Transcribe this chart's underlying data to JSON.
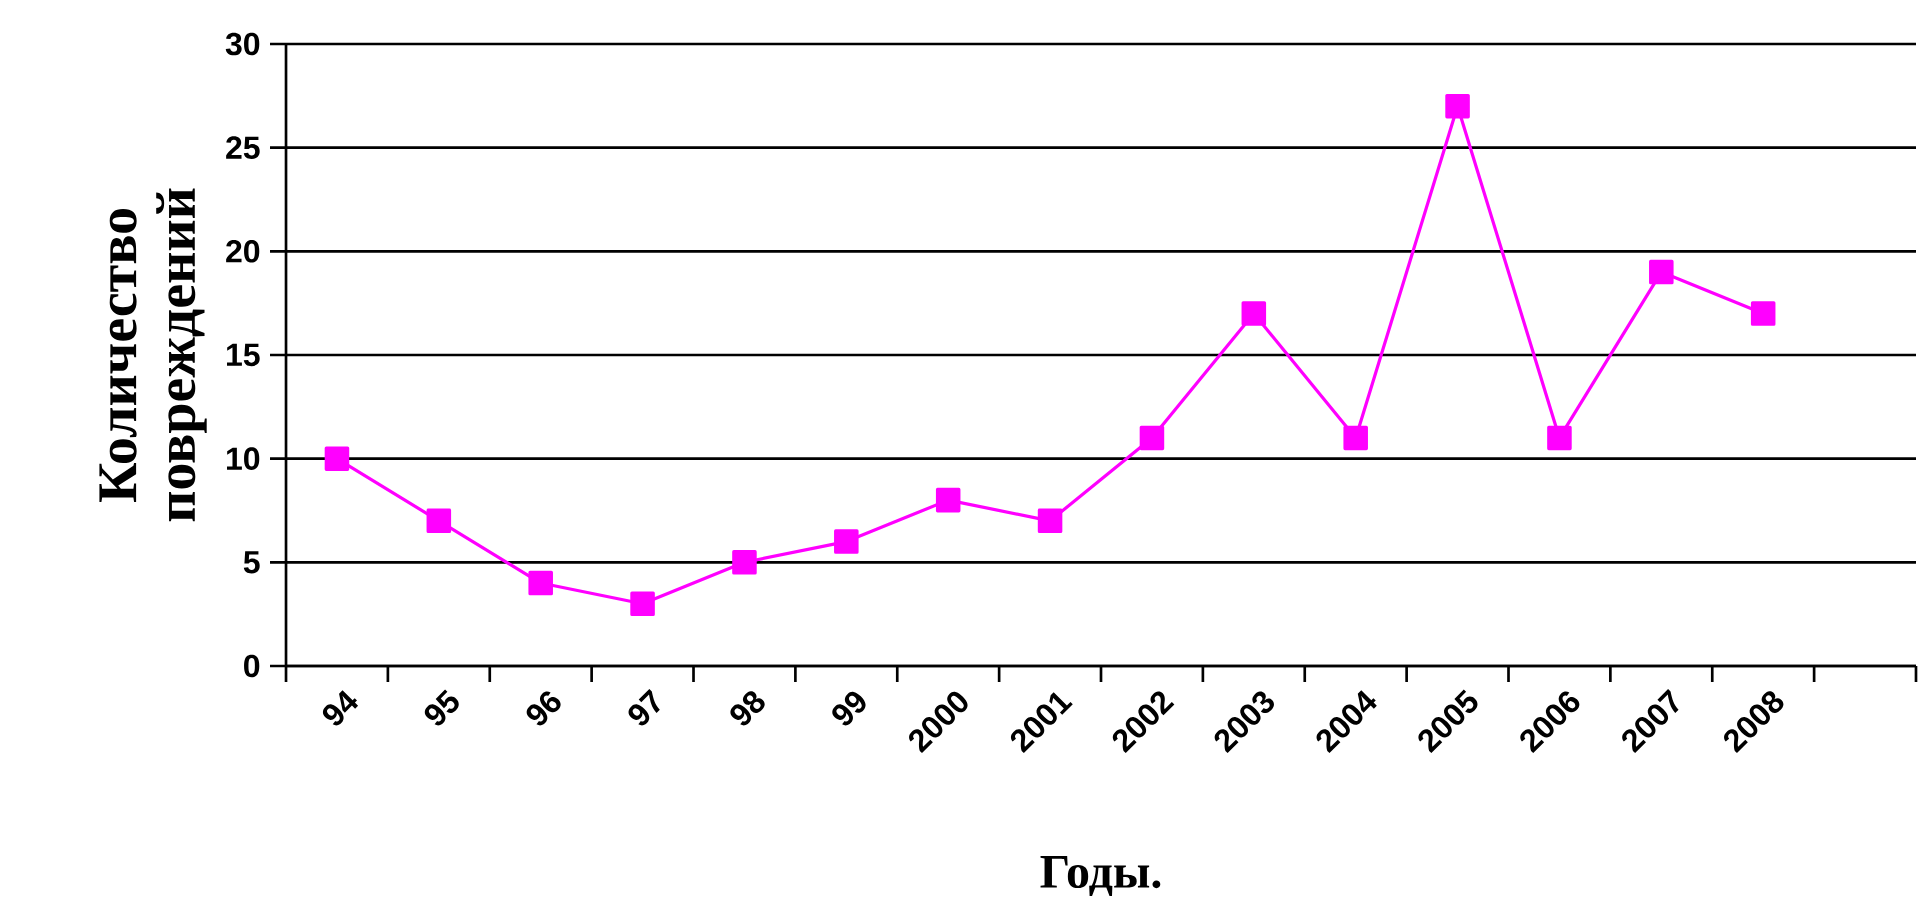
{
  "chart_data": {
    "type": "line",
    "xlabel": "Годы.",
    "ylabel": "Количество повреждений",
    "categories": [
      "94",
      "95",
      "96",
      "97",
      "98",
      "99",
      "2000",
      "2001",
      "2002",
      "2003",
      "2004",
      "2005",
      "2006",
      "2007",
      "2008",
      null
    ],
    "series": [
      {
        "color": "#ff00ff",
        "values": [
          10,
          7,
          4,
          3,
          5,
          6,
          8,
          7,
          11,
          17,
          11,
          27,
          11,
          19,
          17,
          null
        ]
      }
    ],
    "ylim": [
      0,
      30
    ],
    "yticks": [
      0,
      5,
      10,
      15,
      20,
      25,
      30
    ],
    "grid": "y",
    "marker": "square",
    "line_style": "solid"
  }
}
